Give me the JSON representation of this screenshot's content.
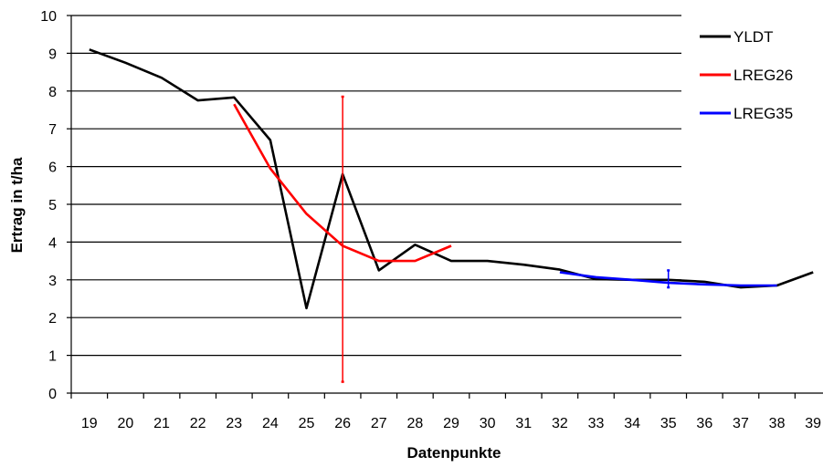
{
  "chart_data": {
    "type": "line",
    "xlabel": "Datenpunkte",
    "ylabel": "Ertrag in t/ha",
    "categories": [
      "19",
      "20",
      "21",
      "22",
      "23",
      "24",
      "25",
      "26",
      "27",
      "28",
      "29",
      "30",
      "31",
      "32",
      "33",
      "34",
      "35",
      "36",
      "37",
      "38",
      "39"
    ],
    "ylim": [
      0,
      10
    ],
    "yticks": [
      0,
      1,
      2,
      3,
      4,
      5,
      6,
      7,
      8,
      9,
      10
    ],
    "grid": "horizontal",
    "legend_position": "top-right",
    "series": [
      {
        "name": "YLDT",
        "color": "#000000",
        "values": [
          9.1,
          8.75,
          8.35,
          7.75,
          7.83,
          6.7,
          2.25,
          5.8,
          3.25,
          3.93,
          3.5,
          3.5,
          3.4,
          3.27,
          3.02,
          3.0,
          3.0,
          2.95,
          2.8,
          2.85,
          3.2
        ]
      },
      {
        "name": "LREG26",
        "color": "#ff0000",
        "values": [
          null,
          null,
          null,
          null,
          7.65,
          5.95,
          4.75,
          3.9,
          3.5,
          3.5,
          3.9,
          null,
          null,
          null,
          null,
          null,
          null,
          null,
          null,
          null,
          null
        ],
        "error_bar": {
          "category": "26",
          "low": 0.3,
          "high": 7.85
        }
      },
      {
        "name": "LREG35",
        "color": "#0000ff",
        "values": [
          null,
          null,
          null,
          null,
          null,
          null,
          null,
          null,
          null,
          null,
          null,
          null,
          null,
          3.2,
          3.07,
          3.0,
          2.92,
          2.88,
          2.85,
          2.85,
          null
        ],
        "error_bar": {
          "category": "35",
          "low": 2.8,
          "high": 3.25
        }
      }
    ]
  }
}
